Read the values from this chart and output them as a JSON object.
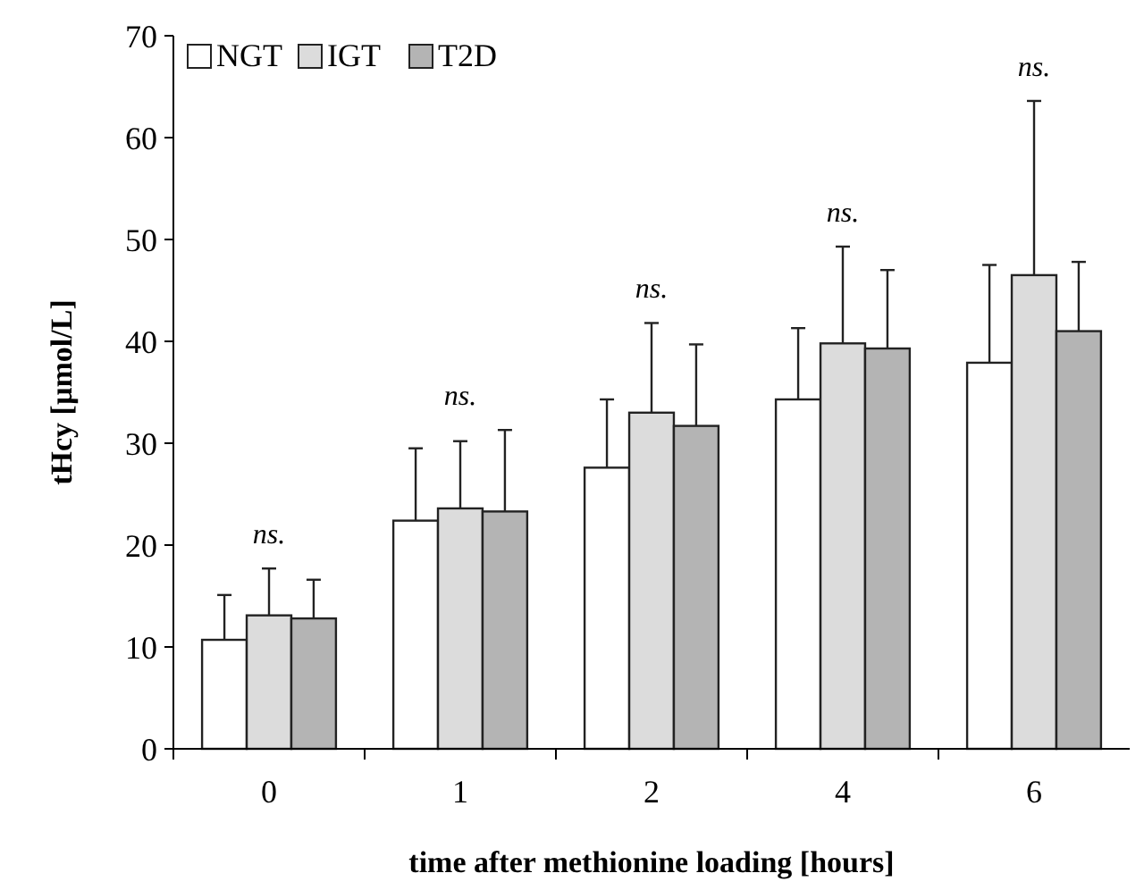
{
  "chart_data": {
    "type": "bar",
    "xlabel": "time after methionine loading [hours]",
    "ylabel": "tHcy [µmol/L]",
    "categories": [
      "0",
      "1",
      "2",
      "4",
      "6"
    ],
    "series": [
      {
        "name": "NGT",
        "color": "#ffffff",
        "values": [
          10.7,
          22.4,
          27.6,
          34.3,
          37.9
        ],
        "errors": [
          [
            10.7,
            15.1
          ],
          [
            22.4,
            29.5
          ],
          [
            27.6,
            34.3
          ],
          [
            34.3,
            41.3
          ],
          [
            37.9,
            47.5
          ]
        ]
      },
      {
        "name": "IGT",
        "color": "#dcdcdc",
        "values": [
          13.1,
          23.6,
          33.0,
          39.8,
          46.5
        ],
        "errors": [
          [
            13.1,
            17.7
          ],
          [
            23.6,
            30.2
          ],
          [
            33.0,
            41.8
          ],
          [
            39.8,
            49.3
          ],
          [
            46.5,
            63.6
          ]
        ]
      },
      {
        "name": "T2D",
        "color": "#b4b4b4",
        "values": [
          12.8,
          23.3,
          31.7,
          39.3,
          41.0
        ],
        "errors": [
          [
            12.8,
            16.6
          ],
          [
            23.3,
            31.3
          ],
          [
            31.7,
            39.7
          ],
          [
            39.3,
            47.0
          ],
          [
            41.0,
            47.8
          ]
        ]
      }
    ],
    "ylim": [
      0,
      70
    ],
    "yticks": [
      0,
      10,
      20,
      30,
      40,
      50,
      60,
      70
    ],
    "legend": "top left",
    "grid": false,
    "annotations": [
      "ns.",
      "ns.",
      "ns.",
      "ns.",
      "ns."
    ]
  }
}
